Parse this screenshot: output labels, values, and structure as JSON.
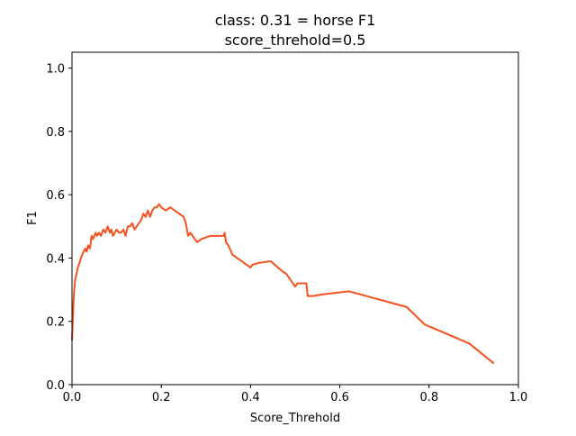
{
  "chart_data": {
    "type": "line",
    "title": "class: 0.31 = horse F1",
    "subtitle": "score_threhold=0.5",
    "xlabel": "Score_Threhold",
    "ylabel": "F1",
    "xlim": [
      0,
      1.0
    ],
    "ylim": [
      0,
      1.05
    ],
    "x_ticks": [
      "0.0",
      "0.2",
      "0.4",
      "0.6",
      "0.8",
      "1.0"
    ],
    "y_ticks": [
      "0.0",
      "0.2",
      "0.4",
      "0.6",
      "0.8",
      "1.0"
    ],
    "grid": false,
    "colors": {
      "line": "#f4511e",
      "axes": "#000000"
    },
    "series": [
      {
        "x": [
          0.0,
          0.003,
          0.005,
          0.007,
          0.01,
          0.013,
          0.016,
          0.018,
          0.02,
          0.023,
          0.026,
          0.03,
          0.033,
          0.036,
          0.04,
          0.044,
          0.047,
          0.05,
          0.053,
          0.056,
          0.06,
          0.065,
          0.07,
          0.075,
          0.08,
          0.085,
          0.088,
          0.092,
          0.096,
          0.1,
          0.105,
          0.11,
          0.115,
          0.12,
          0.125,
          0.13,
          0.135,
          0.14,
          0.145,
          0.15,
          0.155,
          0.16,
          0.165,
          0.17,
          0.175,
          0.18,
          0.185,
          0.19,
          0.195,
          0.2,
          0.21,
          0.22,
          0.23,
          0.24,
          0.25,
          0.255,
          0.26,
          0.265,
          0.27,
          0.275,
          0.28,
          0.29,
          0.31,
          0.33,
          0.34,
          0.342,
          0.345,
          0.35,
          0.36,
          0.38,
          0.4,
          0.405,
          0.408,
          0.42,
          0.445,
          0.47,
          0.48,
          0.49,
          0.5,
          0.505,
          0.51,
          0.52,
          0.525,
          0.528,
          0.54,
          0.56,
          0.62,
          0.75,
          0.79,
          0.89,
          0.945
        ],
        "y": [
          0.14,
          0.25,
          0.3,
          0.33,
          0.35,
          0.37,
          0.38,
          0.39,
          0.4,
          0.41,
          0.42,
          0.43,
          0.42,
          0.44,
          0.43,
          0.47,
          0.46,
          0.47,
          0.48,
          0.47,
          0.48,
          0.47,
          0.49,
          0.48,
          0.5,
          0.48,
          0.49,
          0.47,
          0.48,
          0.49,
          0.48,
          0.48,
          0.49,
          0.47,
          0.5,
          0.5,
          0.51,
          0.49,
          0.5,
          0.51,
          0.52,
          0.54,
          0.53,
          0.55,
          0.53,
          0.55,
          0.56,
          0.56,
          0.57,
          0.56,
          0.55,
          0.56,
          0.55,
          0.54,
          0.53,
          0.51,
          0.47,
          0.48,
          0.47,
          0.46,
          0.45,
          0.46,
          0.47,
          0.47,
          0.47,
          0.48,
          0.45,
          0.44,
          0.41,
          0.39,
          0.37,
          0.38,
          0.38,
          0.385,
          0.39,
          0.36,
          0.35,
          0.33,
          0.31,
          0.32,
          0.32,
          0.32,
          0.32,
          0.28,
          0.28,
          0.285,
          0.295,
          0.245,
          0.19,
          0.13,
          0.067
        ]
      }
    ]
  }
}
